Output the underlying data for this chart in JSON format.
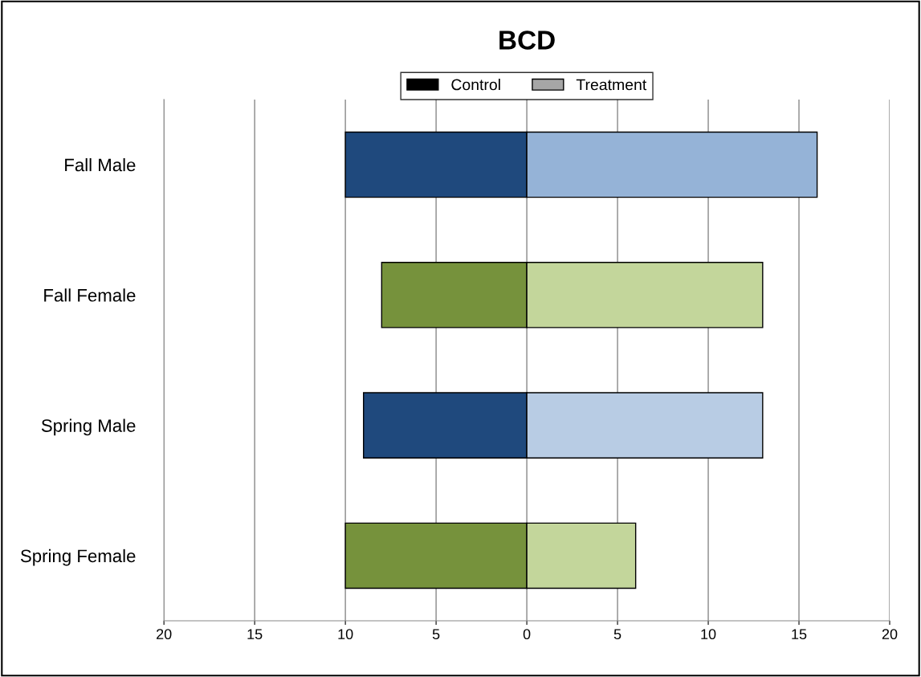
{
  "chart_data": {
    "type": "bar",
    "orientation": "horizontal",
    "title": "BCD",
    "categories": [
      "Fall Male",
      "Fall Female",
      "Spring Male",
      "Spring Female"
    ],
    "series": [
      {
        "name": "Control",
        "color": "#000000",
        "colors": [
          "#1f497d",
          "#76923c",
          "#1f497d",
          "#76923c"
        ],
        "values": [
          -10,
          -8,
          -9,
          -10
        ]
      },
      {
        "name": "Treatment",
        "color": "#a6a6a6",
        "colors": [
          "#95b3d7",
          "#c3d69b",
          "#b8cce4",
          "#c3d69b"
        ],
        "values": [
          16,
          13,
          13,
          6
        ]
      }
    ],
    "xlim": [
      -20,
      20
    ],
    "xticks": [
      {
        "value": -20,
        "label": "20"
      },
      {
        "value": -15,
        "label": "15"
      },
      {
        "value": -10,
        "label": "10"
      },
      {
        "value": -5,
        "label": "5"
      },
      0,
      5,
      10,
      15,
      20
    ],
    "grid": "x",
    "legend": "top",
    "stacked": true
  }
}
